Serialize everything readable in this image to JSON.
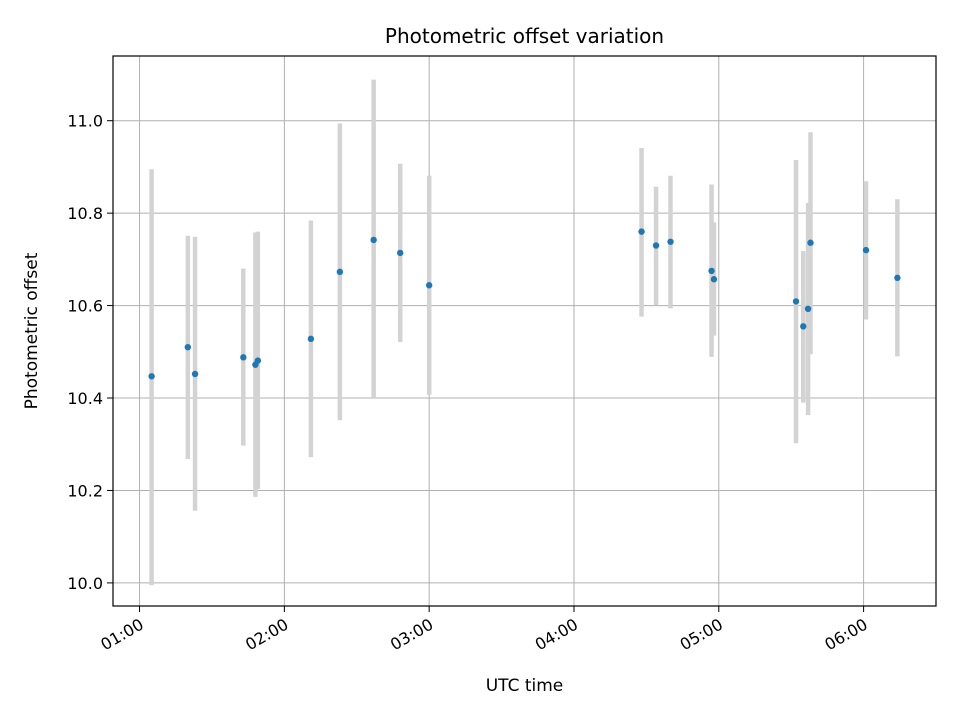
{
  "chart_data": {
    "type": "scatter",
    "title": "Photometric offset variation",
    "xlabel": "UTC time",
    "ylabel": "Photometric offset",
    "x_unit": "UTC time (HH:MM)",
    "xlim": [
      "00:49",
      "06:30"
    ],
    "ylim": [
      9.95,
      11.14
    ],
    "x_ticks": [
      "01:00",
      "02:00",
      "03:00",
      "04:00",
      "05:00",
      "06:00"
    ],
    "y_ticks": [
      "10.0",
      "10.2",
      "10.4",
      "10.6",
      "10.8",
      "11.0"
    ],
    "grid": true,
    "legend": "none",
    "colors": {
      "marker": "#1f77b4",
      "errorbar": "#d3d3d3",
      "grid": "#b0b0b0",
      "axes": "#000000"
    },
    "series": [
      {
        "points": [
          {
            "x": "01:05",
            "y": 10.447,
            "err_low": 9.995,
            "err_high": 10.895
          },
          {
            "x": "01:20",
            "y": 10.51,
            "err_low": 10.268,
            "err_high": 10.751
          },
          {
            "x": "01:23",
            "y": 10.452,
            "err_low": 10.156,
            "err_high": 10.749
          },
          {
            "x": "01:43",
            "y": 10.488,
            "err_low": 10.297,
            "err_high": 10.68
          },
          {
            "x": "01:48",
            "y": 10.472,
            "err_low": 10.186,
            "err_high": 10.758
          },
          {
            "x": "01:49",
            "y": 10.481,
            "err_low": 10.203,
            "err_high": 10.76
          },
          {
            "x": "02:11",
            "y": 10.528,
            "err_low": 10.272,
            "err_high": 10.784
          },
          {
            "x": "02:23",
            "y": 10.673,
            "err_low": 10.352,
            "err_high": 10.994
          },
          {
            "x": "02:37",
            "y": 10.742,
            "err_low": 10.4,
            "err_high": 11.089
          },
          {
            "x": "02:48",
            "y": 10.714,
            "err_low": 10.521,
            "err_high": 10.907
          },
          {
            "x": "03:00",
            "y": 10.644,
            "err_low": 10.407,
            "err_high": 10.881
          },
          {
            "x": "04:28",
            "y": 10.76,
            "err_low": 10.576,
            "err_high": 10.941
          },
          {
            "x": "04:34",
            "y": 10.73,
            "err_low": 10.601,
            "err_high": 10.857
          },
          {
            "x": "04:40",
            "y": 10.738,
            "err_low": 10.594,
            "err_high": 10.881
          },
          {
            "x": "04:57",
            "y": 10.675,
            "err_low": 10.489,
            "err_high": 10.862
          },
          {
            "x": "04:58",
            "y": 10.657,
            "err_low": 10.535,
            "err_high": 10.78
          },
          {
            "x": "05:32",
            "y": 10.609,
            "err_low": 10.302,
            "err_high": 10.915
          },
          {
            "x": "05:35",
            "y": 10.555,
            "err_low": 10.39,
            "err_high": 10.718
          },
          {
            "x": "05:37",
            "y": 10.593,
            "err_low": 10.363,
            "err_high": 10.822
          },
          {
            "x": "05:38",
            "y": 10.736,
            "err_low": 10.495,
            "err_high": 10.975
          },
          {
            "x": "06:01",
            "y": 10.72,
            "err_low": 10.57,
            "err_high": 10.869
          },
          {
            "x": "06:14",
            "y": 10.66,
            "err_low": 10.49,
            "err_high": 10.83
          }
        ]
      }
    ]
  }
}
